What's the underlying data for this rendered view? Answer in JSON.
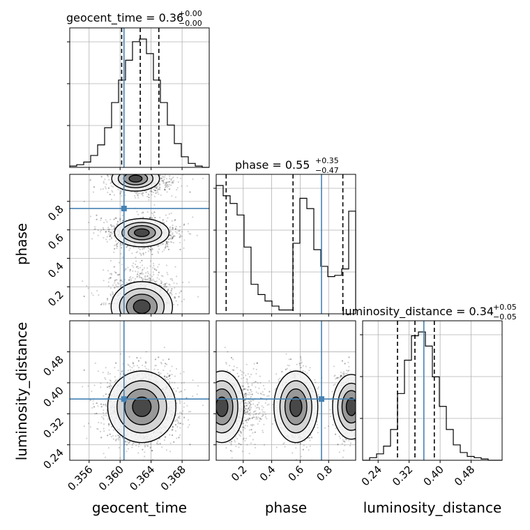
{
  "colors": {
    "truth": "#4682b4",
    "hist": "#000000",
    "grid": "#b0b0b0",
    "scatter": "#000000"
  },
  "titles": {
    "geocent_time": {
      "name": "geocent_time = 0.36",
      "sup": "+0.00",
      "sub": "−0.00"
    },
    "phase": {
      "name": "phase = 0.55",
      "sup": "+0.35",
      "sub": "−0.47"
    },
    "luminosity_distance": {
      "name": "luminosity_distance = 0.34",
      "sup": "+0.05",
      "sub": "−0.05"
    }
  },
  "axis_labels": {
    "x1": "geocent_time",
    "x2": "phase",
    "x3": "luminosity_distance",
    "y2": "phase",
    "y3": "luminosity_distance"
  },
  "ticks": {
    "geocent_time": [
      "0.356",
      "0.360",
      "0.364",
      "0.368"
    ],
    "phase": [
      "0.2",
      "0.4",
      "0.6",
      "0.8"
    ],
    "luminosity_distance": [
      "0.24",
      "0.32",
      "0.40",
      "0.48"
    ]
  },
  "chart_data": {
    "type": "corner",
    "parameters": [
      "geocent_time",
      "phase",
      "luminosity_distance"
    ],
    "ranges": {
      "geocent_time": [
        0.3535,
        0.3715
      ],
      "phase": [
        0.01,
        0.99
      ],
      "luminosity_distance": [
        0.2,
        0.56
      ]
    },
    "truths": {
      "geocent_time": 0.3605,
      "phase": 0.75,
      "luminosity_distance": 0.358
    },
    "quantiles": {
      "geocent_time": [
        0.3602,
        0.3626,
        0.365
      ],
      "phase": [
        0.08,
        0.55,
        0.9
      ],
      "luminosity_distance": [
        0.29,
        0.335,
        0.385
      ]
    },
    "histograms": {
      "geocent_time": [
        1,
        2,
        4,
        9,
        17,
        30,
        49,
        66,
        81,
        95,
        97,
        86,
        66,
        49,
        32,
        18,
        8,
        3,
        1,
        0
      ],
      "phase": [
        100,
        92,
        86,
        77,
        52,
        23,
        15,
        10,
        6,
        3,
        3,
        55,
        90,
        82,
        50,
        37,
        29,
        30,
        35,
        80
      ],
      "luminosity_distance": [
        0,
        2,
        5,
        11,
        24,
        52,
        78,
        97,
        100,
        89,
        65,
        42,
        24,
        12,
        6,
        3,
        2,
        1,
        0,
        0
      ]
    },
    "hist_peak_axis_fraction": 0.92
  }
}
